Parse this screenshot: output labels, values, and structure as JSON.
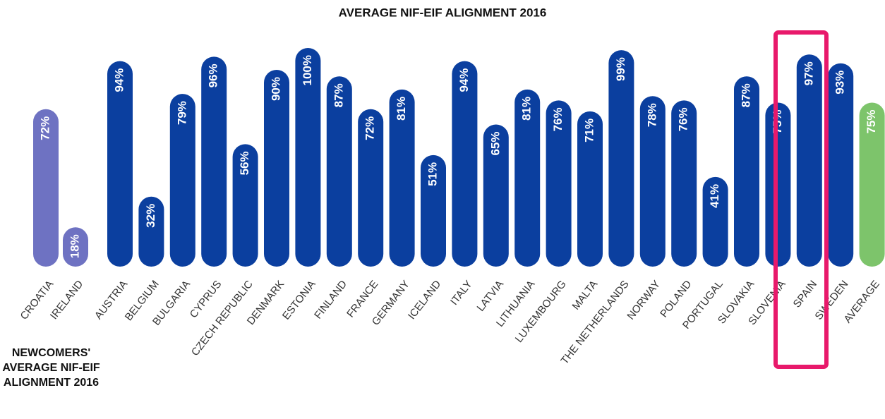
{
  "chart_data": {
    "type": "bar",
    "title": "AVERAGE NIF-EIF ALIGNMENT 2016",
    "annotation": "NEWCOMERS' AVERAGE NIF-EIF ALIGNMENT 2016",
    "categories": [
      "CROATIA",
      "IRELAND",
      "AUSTRIA",
      "BELGIUM",
      "BULGARIA",
      "CYPRUS",
      "CZECH REPUBLIC",
      "DENMARK",
      "ESTONIA",
      "FINLAND",
      "FRANCE",
      "GERMANY",
      "ICELAND",
      "ITALY",
      "LATVIA",
      "LITHUANIA",
      "LUXEMBOURG",
      "MALTA",
      "THE NETHERLANDS",
      "NORWAY",
      "POLAND",
      "PORTUGAL",
      "SLOVAKIA",
      "SLOVENIA",
      "SPAIN",
      "SWEDEN",
      "AVERAGE"
    ],
    "values": [
      72,
      18,
      94,
      32,
      79,
      96,
      56,
      90,
      100,
      87,
      72,
      81,
      51,
      94,
      65,
      81,
      76,
      71,
      99,
      78,
      76,
      41,
      87,
      75,
      97,
      93,
      75
    ],
    "value_labels": [
      "72%",
      "18%",
      "94%",
      "32%",
      "79%",
      "96%",
      "56%",
      "90%",
      "100%",
      "87%",
      "72%",
      "81%",
      "51%",
      "94%",
      "65%",
      "81%",
      "76%",
      "71%",
      "99%",
      "78%",
      "76%",
      "41%",
      "87%",
      "75%",
      "97%",
      "93%",
      "75%"
    ],
    "colors": [
      "#6e72c2",
      "#6e72c2",
      "#0b3f9f",
      "#0b3f9f",
      "#0b3f9f",
      "#0b3f9f",
      "#0b3f9f",
      "#0b3f9f",
      "#0b3f9f",
      "#0b3f9f",
      "#0b3f9f",
      "#0b3f9f",
      "#0b3f9f",
      "#0b3f9f",
      "#0b3f9f",
      "#0b3f9f",
      "#0b3f9f",
      "#0b3f9f",
      "#0b3f9f",
      "#0b3f9f",
      "#0b3f9f",
      "#0b3f9f",
      "#0b3f9f",
      "#0b3f9f",
      "#0b3f9f",
      "#0b3f9f",
      "#7dc46b"
    ]
  }
}
